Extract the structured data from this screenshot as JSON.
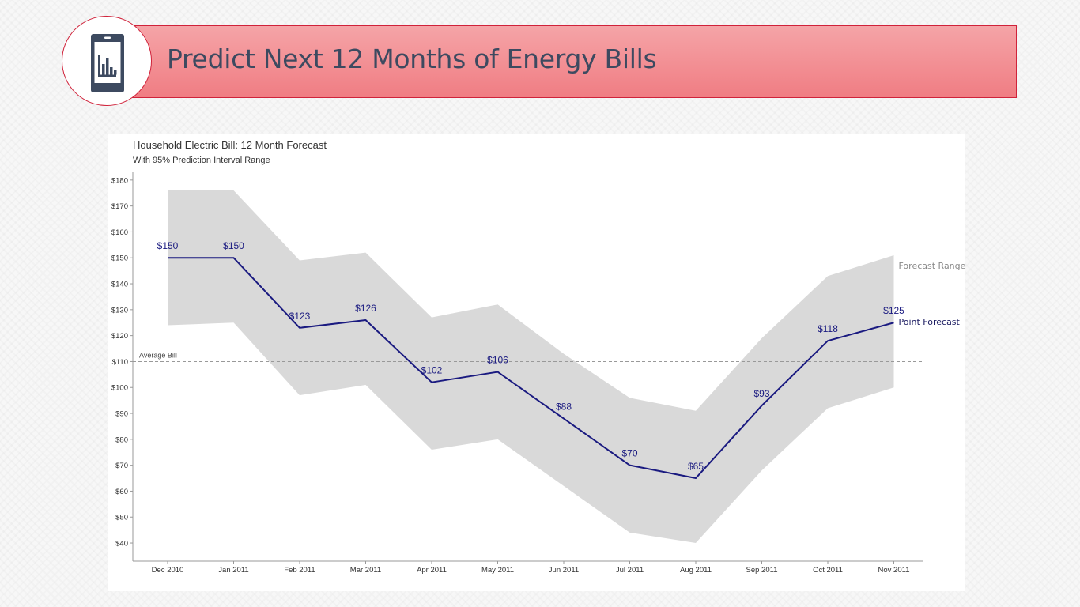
{
  "banner": {
    "title": "Predict Next 12 Months of Energy Bills",
    "icon": "phone-bar-chart-icon",
    "accent_color": "#f07d83",
    "border_color": "#d0223a"
  },
  "chart_data": {
    "type": "line",
    "title": "Household Electric Bill: 12 Month Forecast",
    "subtitle": "With 95% Prediction Interval Range",
    "xlabel": "",
    "ylabel": "",
    "categories": [
      "Dec 2010",
      "Jan 2011",
      "Feb 2011",
      "Mar 2011",
      "Apr 2011",
      "May 2011",
      "Jun 2011",
      "Jul 2011",
      "Aug 2011",
      "Sep 2011",
      "Oct 2011",
      "Nov 2011"
    ],
    "series": [
      {
        "name": "Point Forecast",
        "values": [
          150,
          150,
          123,
          126,
          102,
          106,
          88,
          70,
          65,
          93,
          118,
          125
        ],
        "labels": [
          "$150",
          "$150",
          "$123",
          "$126",
          "$102",
          "$106",
          "$88",
          "$70",
          "$65",
          "$93",
          "$118",
          "$125"
        ],
        "color": "#1a1a80"
      }
    ],
    "range": {
      "name": "Forecast Range",
      "lower": [
        124,
        125,
        97,
        101,
        76,
        80,
        62,
        44,
        40,
        68,
        92,
        100
      ],
      "upper": [
        176,
        176,
        149,
        152,
        127,
        132,
        113,
        96,
        91,
        119,
        143,
        151
      ],
      "color": "#d9d9d9"
    },
    "reference_line": {
      "label": "Average Bill",
      "value": 110
    },
    "y_ticks": [
      40,
      50,
      60,
      70,
      80,
      90,
      100,
      110,
      120,
      130,
      140,
      150,
      160,
      170,
      180
    ],
    "y_tick_labels": [
      "$40",
      "$50",
      "$60",
      "$70",
      "$80",
      "$90",
      "$100",
      "$110",
      "$120",
      "$130",
      "$140",
      "$150",
      "$160",
      "$170",
      "$180"
    ],
    "ylim": [
      33,
      183
    ],
    "grid": false,
    "legend": "direct labels at right"
  }
}
